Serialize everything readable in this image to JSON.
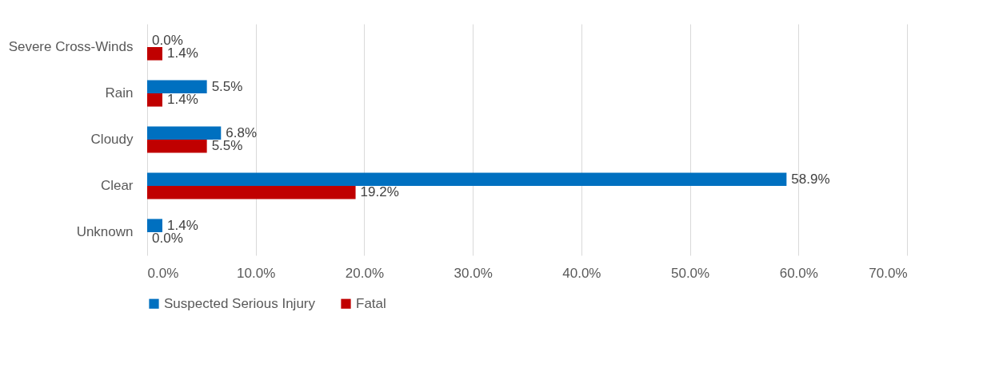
{
  "chart_data": {
    "type": "bar",
    "orientation": "horizontal",
    "categories": [
      "Severe Cross-Winds",
      "Rain",
      "Cloudy",
      "Clear",
      "Unknown"
    ],
    "series": [
      {
        "name": "Suspected Serious Injury",
        "color": "#0070c0",
        "values": [
          0.0,
          5.5,
          6.8,
          58.9,
          1.4
        ],
        "value_labels": [
          "0.0%",
          "5.5%",
          "6.8%",
          "58.9%",
          "1.4%"
        ]
      },
      {
        "name": "Fatal",
        "color": "#c00000",
        "values": [
          1.4,
          1.4,
          5.5,
          19.2,
          0.0
        ],
        "value_labels": [
          "1.4%",
          "1.4%",
          "5.5%",
          "19.2%",
          "0.0%"
        ]
      }
    ],
    "xlim": [
      0,
      70
    ],
    "xticks": [
      {
        "value": 0,
        "label": "0.0%"
      },
      {
        "value": 10,
        "label": "10.0%"
      },
      {
        "value": 20,
        "label": "20.0%"
      },
      {
        "value": 30,
        "label": "30.0%"
      },
      {
        "value": 40,
        "label": "40.0%"
      },
      {
        "value": 50,
        "label": "50.0%"
      },
      {
        "value": 60,
        "label": "60.0%"
      },
      {
        "value": 70,
        "label": "70.0%"
      }
    ],
    "grid": "x",
    "legend": "bottom"
  }
}
